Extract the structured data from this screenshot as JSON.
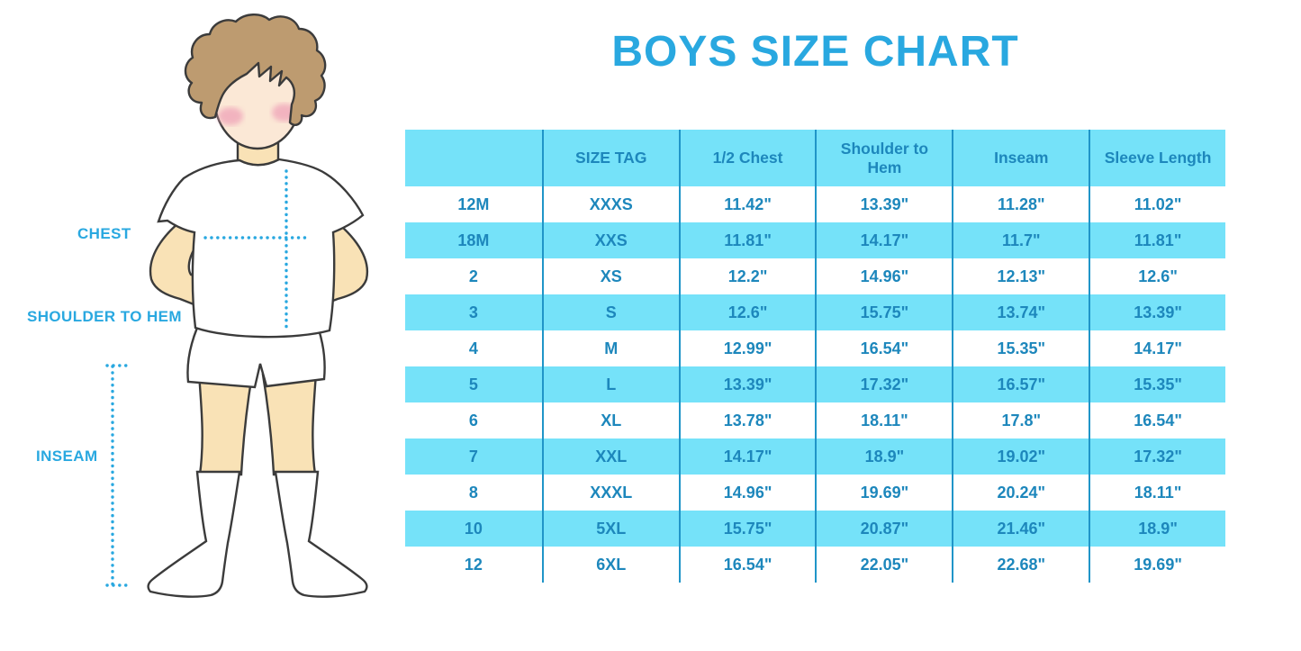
{
  "title": "BOYS SIZE CHART",
  "figure": {
    "description": "boy-measurement-illustration",
    "labels": {
      "chest": "CHEST",
      "shoulder_to_hem": "SHOULDER TO HEM",
      "inseam": "INSEAM"
    }
  },
  "chart_data": {
    "type": "table",
    "title": "BOYS SIZE CHART",
    "headers": [
      "",
      "SIZE TAG",
      "1/2 Chest",
      "Shoulder to Hem",
      "Inseam",
      "Sleeve Length"
    ],
    "rows": [
      [
        "12M",
        "XXXS",
        "11.42\"",
        "13.39\"",
        "11.28\"",
        "11.02\""
      ],
      [
        "18M",
        "XXS",
        "11.81\"",
        "14.17\"",
        "11.7\"",
        "11.81\""
      ],
      [
        "2",
        "XS",
        "12.2\"",
        "14.96\"",
        "12.13\"",
        "12.6\""
      ],
      [
        "3",
        "S",
        "12.6\"",
        "15.75\"",
        "13.74\"",
        "13.39\""
      ],
      [
        "4",
        "M",
        "12.99\"",
        "16.54\"",
        "15.35\"",
        "14.17\""
      ],
      [
        "5",
        "L",
        "13.39\"",
        "17.32\"",
        "16.57\"",
        "15.35\""
      ],
      [
        "6",
        "XL",
        "13.78\"",
        "18.11\"",
        "17.8\"",
        "16.54\""
      ],
      [
        "7",
        "XXL",
        "14.17\"",
        "18.9\"",
        "19.02\"",
        "17.32\""
      ],
      [
        "8",
        "XXXL",
        "14.96\"",
        "19.69\"",
        "20.24\"",
        "18.11\""
      ],
      [
        "10",
        "5XL",
        "15.75\"",
        "20.87\"",
        "21.46\"",
        "18.9\""
      ],
      [
        "12",
        "6XL",
        "16.54\"",
        "22.05\"",
        "22.68\"",
        "19.69\""
      ]
    ],
    "layout": {
      "header_background": "#75E2F9",
      "row_alternation": [
        "white",
        "#75E2F9"
      ],
      "column_separator_color": "#2095C8",
      "grid": "vertical-separators-only"
    }
  },
  "colors": {
    "accent": "#29A8E0",
    "cyan": "#75E2F9",
    "tableText": "#1D87BC",
    "sep": "#2095C8",
    "skin": "#F9E2B6",
    "face": "#FBE8D6",
    "hair": "#BD9B70",
    "cheek": "#F0A7BA",
    "outline": "#3B3B3B"
  }
}
